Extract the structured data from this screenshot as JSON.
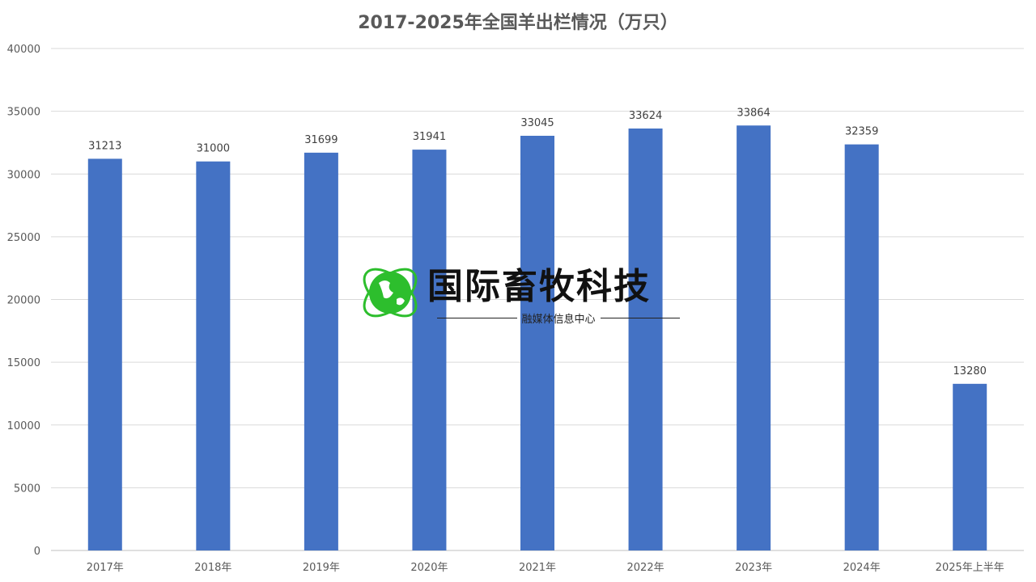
{
  "chart_data": {
    "type": "bar",
    "title": "2017-2025年全国羊出栏情况（万只）",
    "categories": [
      "2017年",
      "2018年",
      "2019年",
      "2020年",
      "2021年",
      "2022年",
      "2023年",
      "2024年",
      "2025年上半年"
    ],
    "values": [
      31213,
      31000,
      31699,
      31941,
      33045,
      33624,
      33864,
      32359,
      13280
    ],
    "ylim": [
      0,
      40000
    ],
    "yticks": [
      0,
      5000,
      10000,
      15000,
      20000,
      25000,
      30000,
      35000,
      40000
    ],
    "xlabel": "",
    "ylabel": "",
    "grid": true,
    "bar_color": "#4472C4",
    "data_labels": true
  },
  "watermark": {
    "name": "国际畜牧科技",
    "subtitle": "融媒体信息中心",
    "globe_color": "#2DBE2D"
  }
}
